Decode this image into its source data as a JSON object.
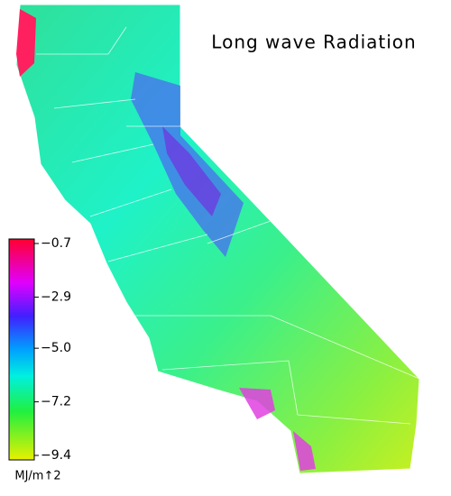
{
  "title": "Long wave Radiation",
  "colorbar": {
    "ticks": [
      {
        "value": -0.7,
        "label": "−0.7"
      },
      {
        "value": -2.9,
        "label": "−2.9"
      },
      {
        "value": -5.0,
        "label": "−5.0"
      },
      {
        "value": -7.2,
        "label": "−7.2"
      },
      {
        "value": -9.4,
        "label": "−9.4"
      }
    ],
    "unit": "MJ/m↑2"
  }
}
